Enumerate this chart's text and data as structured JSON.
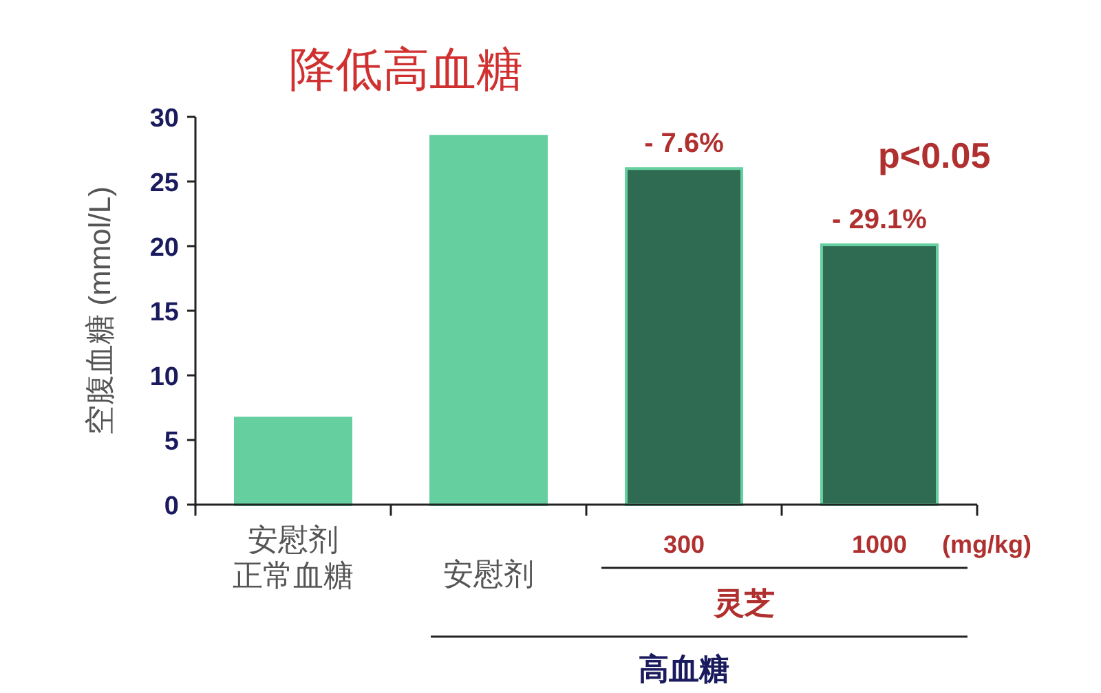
{
  "chart_data": {
    "type": "bar",
    "title": "降低高血糖",
    "ylabel": "空腹血糖 (mmol/L)",
    "categories": [
      "安慰剂正常血糖",
      "安慰剂",
      "300",
      "1000"
    ],
    "values": [
      6.7,
      28.5,
      26,
      20.1
    ],
    "colors": [
      "#66cfa0",
      "#66cfa0",
      "#2f6b52",
      "#2f6b52"
    ],
    "ylim": [
      0,
      30
    ],
    "yticks": [
      0,
      5,
      10,
      15,
      20,
      25,
      30
    ],
    "grid": false,
    "annotations": [
      {
        "text": "- 7.6%",
        "x": "300",
        "y": 26
      },
      {
        "text": "- 29.1%",
        "x": "1000",
        "y": 20.1
      },
      "p<0.05",
      "(mg/kg)",
      "灵芝",
      "高血糖"
    ]
  }
}
